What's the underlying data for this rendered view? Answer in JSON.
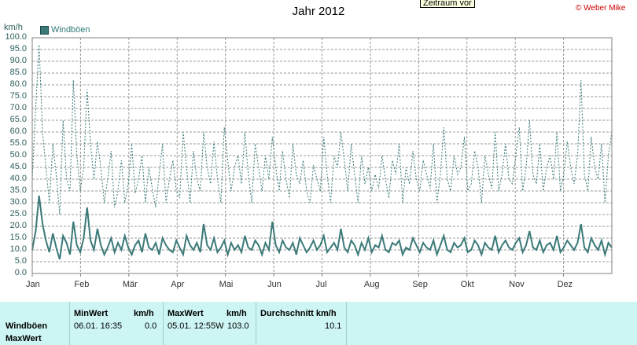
{
  "title": "Jahr 2012",
  "tooltip": "Zeitraum vor",
  "copyright": "© Weber Mike",
  "legend": {
    "label": "Windböen"
  },
  "colors": {
    "line": "#3b7a78",
    "grid": "#9a9a9a",
    "panel": "#ccf5f3",
    "copyright": "#cc0000"
  },
  "chart_data": {
    "type": "line",
    "title": "Jahr 2012",
    "ylabel": "km/h",
    "ylim": [
      0,
      100
    ],
    "y_ticks": [
      "0.0",
      "5.0",
      "10.0",
      "15.0",
      "20.0",
      "25.0",
      "30.0",
      "35.0",
      "40.0",
      "45.0",
      "50.0",
      "55.0",
      "60.0",
      "65.0",
      "70.0",
      "75.0",
      "80.0",
      "85.0",
      "90.0",
      "95.0",
      "100.0"
    ],
    "x_ticks": [
      "Jan",
      "Feb",
      "Mär",
      "Apr",
      "Mai",
      "Jun",
      "Jul",
      "Aug",
      "Sep",
      "Okt",
      "Nov",
      "Dez"
    ],
    "grid": true,
    "legend_position": "top-left",
    "series": [
      {
        "name": "Windböen",
        "style": "solid",
        "values": [
          10,
          18,
          33,
          21,
          14,
          9,
          17,
          11,
          6,
          16,
          13,
          8,
          22,
          12,
          9,
          15,
          28,
          14,
          10,
          19,
          12,
          8,
          11,
          15,
          9,
          13,
          10,
          16,
          11,
          8,
          12,
          14,
          9,
          17,
          11,
          10,
          13,
          8,
          15,
          12,
          10,
          9,
          14,
          11,
          8,
          16,
          12,
          10,
          13,
          9,
          21,
          12,
          10,
          15,
          9,
          11,
          14,
          8,
          13,
          10,
          12,
          9,
          16,
          11,
          10,
          14,
          12,
          8,
          13,
          10,
          22,
          12,
          9,
          14,
          11,
          10,
          13,
          8,
          15,
          12,
          9,
          11,
          14,
          10,
          12,
          16,
          9,
          11,
          13,
          10,
          19,
          11,
          9,
          14,
          12,
          8,
          13,
          10,
          15,
          9,
          12,
          11,
          16,
          10,
          9,
          13,
          12,
          14,
          8,
          11,
          10,
          15,
          12,
          9,
          13,
          11,
          10,
          14,
          8,
          12,
          16,
          10,
          9,
          13,
          11,
          12,
          15,
          9,
          10,
          14,
          12,
          8,
          13,
          11,
          10,
          16,
          9,
          12,
          14,
          11,
          10,
          13,
          15,
          9,
          12,
          18,
          11,
          10,
          14,
          9,
          12,
          13,
          10,
          16,
          9,
          11,
          14,
          12,
          10,
          13,
          21,
          11,
          9,
          15,
          12,
          10,
          14,
          8,
          13,
          11
        ]
      },
      {
        "name": "MaxWert",
        "style": "dotted",
        "values": [
          40,
          70,
          97,
          60,
          45,
          30,
          55,
          42,
          25,
          65,
          40,
          35,
          82,
          50,
          35,
          45,
          78,
          55,
          40,
          56,
          45,
          30,
          40,
          52,
          28,
          35,
          48,
          30,
          38,
          55,
          34,
          40,
          50,
          30,
          45,
          36,
          28,
          42,
          55,
          30,
          40,
          48,
          35,
          32,
          60,
          45,
          30,
          52,
          40,
          35,
          60,
          45,
          38,
          56,
          40,
          30,
          62,
          48,
          35,
          45,
          50,
          38,
          60,
          42,
          30,
          55,
          45,
          35,
          50,
          40,
          58,
          45,
          35,
          52,
          40,
          32,
          55,
          42,
          38,
          48,
          35,
          30,
          46,
          40,
          35,
          58,
          42,
          30,
          50,
          45,
          60,
          48,
          35,
          55,
          42,
          30,
          50,
          38,
          45,
          35,
          42,
          36,
          50,
          40,
          32,
          48,
          42,
          55,
          30,
          45,
          38,
          52,
          40,
          35,
          48,
          42,
          36,
          55,
          30,
          42,
          62,
          40,
          35,
          50,
          42,
          45,
          58,
          35,
          38,
          52,
          45,
          30,
          50,
          42,
          36,
          60,
          35,
          42,
          55,
          40,
          38,
          50,
          62,
          35,
          45,
          65,
          42,
          38,
          55,
          35,
          45,
          50,
          40,
          60,
          35,
          42,
          56,
          45,
          38,
          50,
          82,
          42,
          35,
          58,
          45,
          40,
          55,
          30,
          50,
          60
        ]
      }
    ]
  },
  "panel": {
    "row_labels": [
      "Windböen",
      "MaxWert"
    ],
    "min": {
      "header": "MinWert",
      "unit": "km/h",
      "time": "06.01.  16:35",
      "value": "0.0"
    },
    "max": {
      "header": "MaxWert",
      "unit": "km/h",
      "time": "05.01.  12:55W",
      "value": "103.0"
    },
    "avg": {
      "header": "Durchschnitt km/h",
      "value": "10.1"
    }
  }
}
